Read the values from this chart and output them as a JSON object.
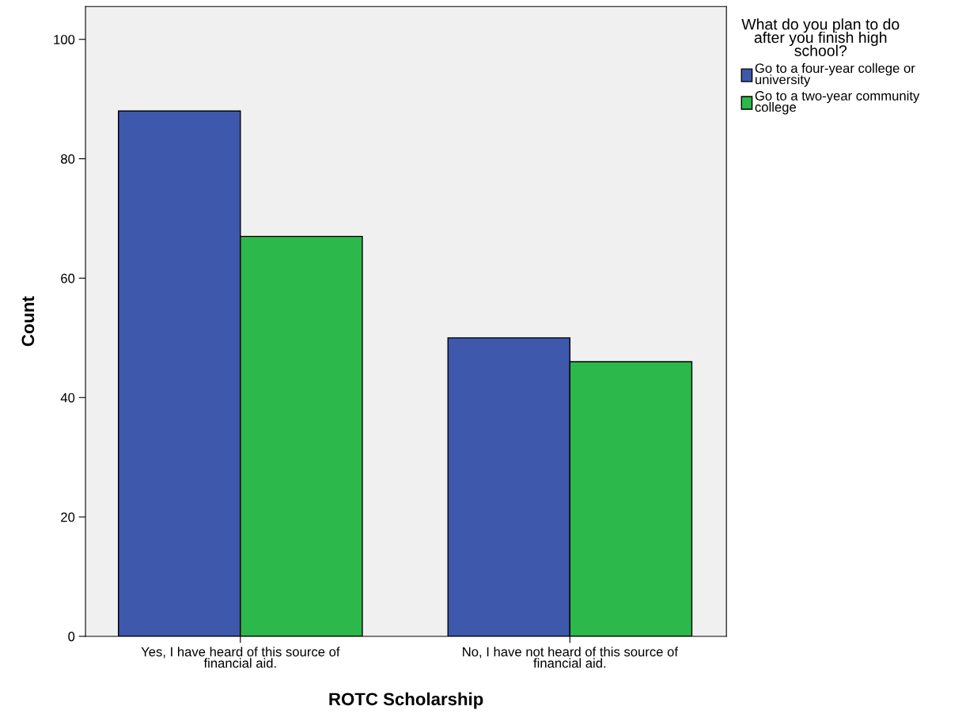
{
  "chart_data": {
    "type": "bar",
    "xlabel": "ROTC Scholarship",
    "ylabel": "Count",
    "legend_title": "What do you plan to do\nafter you finish high\nschool?",
    "categories": [
      "Yes, I have heard of this source of\nfinancial aid.",
      "No, I have not heard of this source of\nfinancial aid."
    ],
    "series": [
      {
        "name": "Go to a four-year college or\nuniversity",
        "color": "#3e58ac",
        "values": [
          88,
          50
        ]
      },
      {
        "name": "Go to a two-year community\ncollege",
        "color": "#2db84b",
        "values": [
          67,
          46
        ]
      }
    ],
    "ylim": [
      0,
      105.5
    ],
    "yticks": [
      0,
      20,
      40,
      60,
      80,
      100
    ],
    "grid": false,
    "legend": "top right"
  }
}
